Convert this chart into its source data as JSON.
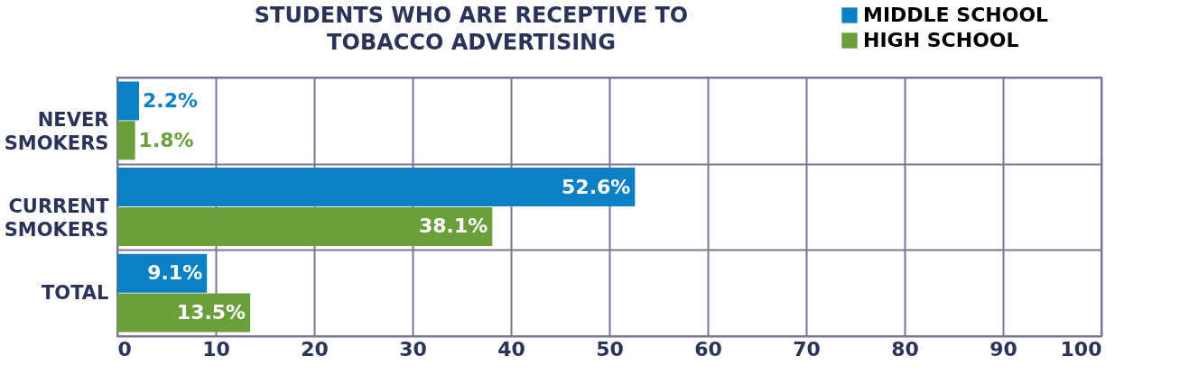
{
  "chart_data": {
    "type": "bar",
    "orientation": "horizontal",
    "title": "STUDENTS WHO ARE RECEPTIVE TO TOBACCO ADVERTISING",
    "categories": [
      "NEVER SMOKERS",
      "CURRENT SMOKERS",
      "TOTAL"
    ],
    "series": [
      {
        "name": "MIDDLE SCHOOL",
        "color": "#0b80c5",
        "values": [
          2.2,
          52.6,
          9.1
        ],
        "value_labels": [
          "2.2%",
          "52.6%",
          "9.1%"
        ]
      },
      {
        "name": "HIGH SCHOOL",
        "color": "#6a9f3c",
        "values": [
          1.8,
          38.1,
          13.5
        ],
        "value_labels": [
          "1.8%",
          "38.1%",
          "13.5%"
        ]
      }
    ],
    "xlim": [
      0,
      100
    ],
    "xticks": [
      0,
      10,
      20,
      30,
      40,
      50,
      60,
      70,
      80,
      90,
      100
    ],
    "grid": true,
    "legend": "top right"
  }
}
